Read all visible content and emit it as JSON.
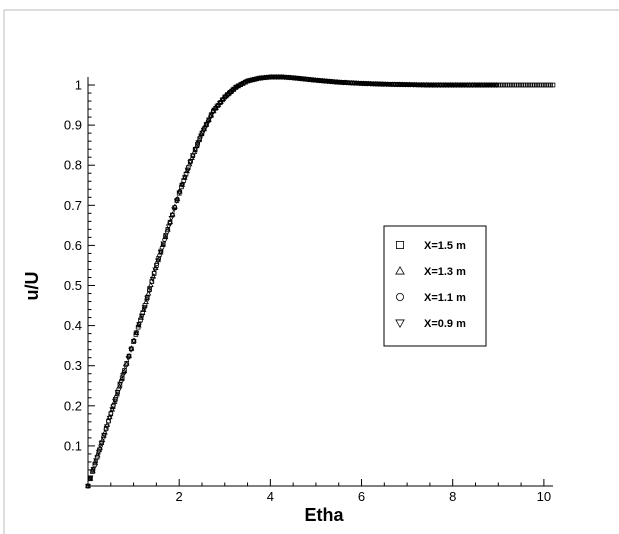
{
  "chart_data": {
    "type": "scatter",
    "xlabel": "Etha",
    "ylabel": "u/U",
    "xlim": [
      0,
      10.2
    ],
    "ylim": [
      0,
      1.02
    ],
    "x_ticks": [
      2,
      4,
      6,
      8,
      10
    ],
    "x_tick_labels": [
      "2",
      "4",
      "6",
      "8",
      "10"
    ],
    "y_ticks": [
      0.1,
      0.2,
      0.3,
      0.4,
      0.5,
      0.6,
      0.7,
      0.8,
      0.9,
      1.0
    ],
    "y_tick_labels": [
      "0.1",
      "0.2",
      "0.3",
      "0.4",
      "0.5",
      "0.6",
      "0.7",
      "0.8",
      "0.9",
      "1"
    ],
    "grid": false,
    "legend_position": "center-right",
    "series": [
      {
        "name": "X=1.5 m",
        "marker": "square",
        "x": [
          0,
          0.25,
          0.5,
          0.75,
          1.0,
          1.25,
          1.5,
          1.75,
          2.0,
          2.25,
          2.5,
          2.75,
          3.0,
          3.25,
          3.5,
          3.75,
          4.0,
          4.25,
          4.5,
          4.75,
          5.0,
          5.5,
          6.0,
          6.5,
          7.0,
          7.5,
          8.0,
          8.5,
          9.0,
          9.5,
          10.0,
          10.2
        ],
        "y": [
          0,
          0.09,
          0.18,
          0.27,
          0.36,
          0.45,
          0.55,
          0.64,
          0.73,
          0.81,
          0.88,
          0.935,
          0.97,
          0.995,
          1.01,
          1.017,
          1.02,
          1.02,
          1.018,
          1.015,
          1.012,
          1.007,
          1.004,
          1.002,
          1.001,
          1.0,
          1.0,
          1.0,
          1.0,
          1.0,
          1.0,
          1.0
        ]
      },
      {
        "name": "X=1.3 m",
        "marker": "triangle-up",
        "x": [
          0,
          0.25,
          0.5,
          0.75,
          1.0,
          1.25,
          1.5,
          1.75,
          2.0,
          2.25,
          2.5,
          2.75,
          3.0,
          3.25,
          3.5,
          3.75,
          4.0,
          4.25,
          4.5,
          4.75,
          5.0,
          5.5,
          6.0,
          6.5,
          7.0,
          7.5,
          8.0,
          8.5,
          9.0
        ],
        "y": [
          0,
          0.09,
          0.18,
          0.27,
          0.36,
          0.45,
          0.55,
          0.64,
          0.73,
          0.81,
          0.88,
          0.935,
          0.97,
          0.995,
          1.01,
          1.017,
          1.02,
          1.02,
          1.018,
          1.015,
          1.012,
          1.007,
          1.004,
          1.002,
          1.001,
          1.0,
          1.0,
          1.0,
          1.0
        ]
      },
      {
        "name": "X=1.1 m",
        "marker": "circle",
        "x": [
          0,
          0.25,
          0.5,
          0.75,
          1.0,
          1.25,
          1.5,
          1.75,
          2.0,
          2.25,
          2.5,
          2.75,
          3.0,
          3.25,
          3.5,
          3.75,
          4.0,
          4.25,
          4.5,
          4.75,
          5.0,
          5.5,
          6.0,
          6.5,
          7.0,
          7.5,
          8.0,
          8.5,
          9.0
        ],
        "y": [
          0,
          0.09,
          0.18,
          0.27,
          0.36,
          0.45,
          0.55,
          0.64,
          0.73,
          0.81,
          0.88,
          0.935,
          0.97,
          0.995,
          1.01,
          1.017,
          1.02,
          1.02,
          1.018,
          1.015,
          1.012,
          1.007,
          1.004,
          1.002,
          1.001,
          1.0,
          1.0,
          1.0,
          1.0
        ]
      },
      {
        "name": "X=0.9 m",
        "marker": "triangle-down",
        "x": [
          0,
          0.25,
          0.5,
          0.75,
          1.0,
          1.25,
          1.5,
          1.75,
          2.0,
          2.25,
          2.5,
          2.75,
          3.0,
          3.25,
          3.5,
          3.75,
          4.0,
          4.25,
          4.5,
          4.75,
          5.0,
          5.5,
          6.0,
          6.5,
          7.0,
          7.5,
          8.0,
          8.5,
          9.0
        ],
        "y": [
          0,
          0.09,
          0.18,
          0.27,
          0.36,
          0.45,
          0.55,
          0.64,
          0.73,
          0.81,
          0.88,
          0.935,
          0.97,
          0.995,
          1.01,
          1.017,
          1.02,
          1.02,
          1.018,
          1.015,
          1.012,
          1.007,
          1.004,
          1.002,
          1.001,
          1.0,
          1.0,
          1.0,
          1.0
        ]
      }
    ]
  }
}
